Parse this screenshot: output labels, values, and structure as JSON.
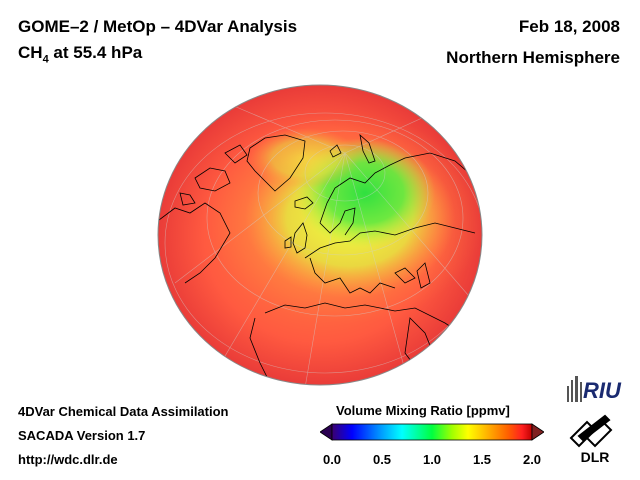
{
  "header": {
    "title": "GOME–2 / MetOp – 4DVar Analysis",
    "species": "CH",
    "species_sub": "4",
    "level": " at 55.4 hPa",
    "date": "Feb 18, 2008",
    "region": "Northern Hemisphere"
  },
  "footer": {
    "line1": "4DVar Chemical Data Assimilation",
    "line2": "SACADA Version 1.7",
    "line3": "http://wdc.dlr.de"
  },
  "colorbar": {
    "title": "Volume Mixing Ratio [ppmv]",
    "ticks": [
      "0.0",
      "0.5",
      "1.0",
      "1.5",
      "2.0"
    ],
    "min": 0.0,
    "max": 2.0,
    "colors": [
      "#3a0070",
      "#0000ff",
      "#00a0ff",
      "#00ffff",
      "#00ff40",
      "#a0ff00",
      "#ffff00",
      "#ffb000",
      "#ff6000",
      "#ff2020",
      "#c00000"
    ],
    "under_color": "#2a0050",
    "over_color": "#802020"
  },
  "map": {
    "projection": "orthographic",
    "view": "Northern Hemisphere",
    "field_colors": {
      "background": "#f04a3c",
      "outer": "#ff5a40",
      "mid": "#ffa040",
      "inner": "#f0e040",
      "core": "#40e040"
    }
  },
  "logos": {
    "riu": "RIU",
    "dlr": "DLR"
  }
}
